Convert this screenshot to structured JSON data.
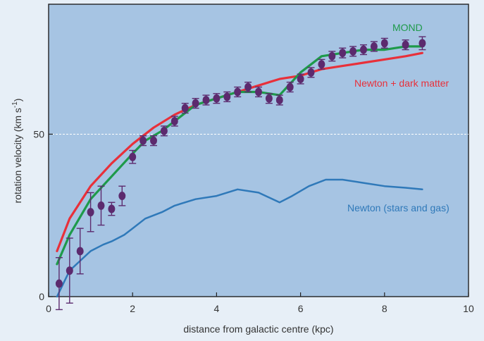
{
  "chart_data": {
    "type": "line",
    "title": "",
    "xlabel": "distance from galactic centre (kpc)",
    "ylabel": "rotation velocity (km s",
    "ylabel_unit_superscript": "-1",
    "ylabel_close": ")",
    "xlim": [
      0,
      10
    ],
    "ylim": [
      0,
      90
    ],
    "x_ticks": [
      0,
      2,
      4,
      6,
      8,
      10
    ],
    "x_tick_labels": [
      "0",
      "2",
      "4",
      "6",
      "8",
      "10"
    ],
    "y_ticks": [
      0,
      50
    ],
    "y_tick_labels": [
      "0",
      "50"
    ],
    "grid": "horizontal dashed line at 50",
    "plot_background": "#a6c4e3",
    "series": [
      {
        "name": "MOND",
        "color": "#1e9a4a",
        "x": [
          0.2,
          0.5,
          1.0,
          1.5,
          2.0,
          2.3,
          2.7,
          3.0,
          3.5,
          4.0,
          4.5,
          5.0,
          5.5,
          6.0,
          6.5,
          7.0,
          7.5,
          8.0,
          8.5,
          8.9
        ],
        "y": [
          10,
          19,
          30,
          37,
          44,
          48,
          51,
          54,
          59,
          61,
          63,
          63,
          62,
          69,
          74,
          75,
          76,
          76,
          77,
          77
        ]
      },
      {
        "name": "Newton + dark matter",
        "color": "#e8303a",
        "x": [
          0.2,
          0.5,
          1.0,
          1.5,
          2.0,
          2.5,
          3.0,
          3.5,
          4.0,
          4.5,
          5.0,
          5.5,
          6.0,
          6.5,
          7.0,
          7.5,
          8.0,
          8.5,
          8.9
        ],
        "y": [
          14,
          24,
          34,
          41,
          47,
          52,
          56,
          59,
          61,
          63,
          65,
          67,
          68,
          70,
          71,
          72,
          73,
          74,
          75
        ]
      },
      {
        "name": "Newton (stars and gas)",
        "color": "#2f79b9",
        "x": [
          0.2,
          0.5,
          1.0,
          1.3,
          1.5,
          1.8,
          2.0,
          2.3,
          2.7,
          3.0,
          3.5,
          4.0,
          4.5,
          5.0,
          5.5,
          5.8,
          6.2,
          6.6,
          7.0,
          7.5,
          8.0,
          8.5,
          8.9
        ],
        "y": [
          0,
          8,
          14,
          16,
          17,
          19,
          21,
          24,
          26,
          28,
          30,
          31,
          33,
          32,
          29,
          31,
          34,
          36,
          36,
          35,
          34,
          33.5,
          33
        ]
      }
    ],
    "observations": {
      "name": "data",
      "color": "#5c2a6e",
      "points": [
        {
          "x": 0.25,
          "y": 4,
          "err": 8
        },
        {
          "x": 0.5,
          "y": 8,
          "err": 10
        },
        {
          "x": 0.75,
          "y": 14,
          "err": 7
        },
        {
          "x": 1.0,
          "y": 26,
          "err": 6
        },
        {
          "x": 1.25,
          "y": 28,
          "err": 6
        },
        {
          "x": 1.5,
          "y": 27,
          "err": 2
        },
        {
          "x": 1.75,
          "y": 31,
          "err": 3
        },
        {
          "x": 2.0,
          "y": 43,
          "err": 2
        },
        {
          "x": 2.25,
          "y": 48,
          "err": 1.5
        },
        {
          "x": 2.5,
          "y": 48,
          "err": 1.5
        },
        {
          "x": 2.75,
          "y": 51,
          "err": 1.5
        },
        {
          "x": 3.0,
          "y": 54,
          "err": 1.5
        },
        {
          "x": 3.25,
          "y": 58,
          "err": 1.5
        },
        {
          "x": 3.5,
          "y": 59.5,
          "err": 1.5
        },
        {
          "x": 3.75,
          "y": 60.5,
          "err": 1.5
        },
        {
          "x": 4.0,
          "y": 61,
          "err": 1.5
        },
        {
          "x": 4.25,
          "y": 61.5,
          "err": 1.5
        },
        {
          "x": 4.5,
          "y": 63,
          "err": 1.5
        },
        {
          "x": 4.75,
          "y": 64.5,
          "err": 1.5
        },
        {
          "x": 5.0,
          "y": 63,
          "err": 1.5
        },
        {
          "x": 5.25,
          "y": 61,
          "err": 1.5
        },
        {
          "x": 5.5,
          "y": 60.5,
          "err": 1.5
        },
        {
          "x": 5.75,
          "y": 64.5,
          "err": 1.5
        },
        {
          "x": 6.0,
          "y": 67,
          "err": 1.5
        },
        {
          "x": 6.25,
          "y": 69,
          "err": 1.5
        },
        {
          "x": 6.5,
          "y": 71.5,
          "err": 1.5
        },
        {
          "x": 6.75,
          "y": 74,
          "err": 1.5
        },
        {
          "x": 7.0,
          "y": 75,
          "err": 1.5
        },
        {
          "x": 7.25,
          "y": 75.5,
          "err": 1.5
        },
        {
          "x": 7.5,
          "y": 76,
          "err": 1.5
        },
        {
          "x": 7.75,
          "y": 77,
          "err": 1.5
        },
        {
          "x": 8.0,
          "y": 78,
          "err": 1.5
        },
        {
          "x": 8.5,
          "y": 77.5,
          "err": 1.5
        },
        {
          "x": 8.9,
          "y": 78,
          "err": 2
        }
      ]
    },
    "annotations": [
      {
        "text": "MOND",
        "series": "MOND"
      },
      {
        "text": "Newton + dark matter",
        "series": "Newton + dark matter"
      },
      {
        "text": "Newton (stars and gas)",
        "series": "Newton (stars and gas)"
      }
    ]
  }
}
